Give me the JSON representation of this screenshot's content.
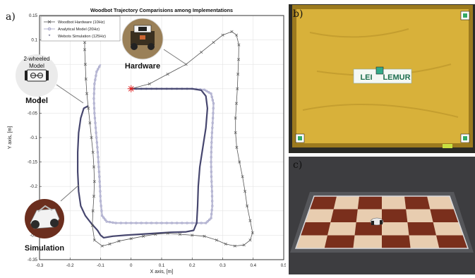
{
  "panel_labels": {
    "a": "a)",
    "b": "b)",
    "c": "c)"
  },
  "callouts": {
    "model_line1": "2-wheeled",
    "model_line2": "Model",
    "model_caption": "Model",
    "hardware_caption": "Hardware",
    "simulation_caption": "Simulation"
  },
  "photo_b": {
    "sign_left": "LEI",
    "sign_right": "LEMUR",
    "colors": {
      "board": "#d8b13a",
      "board_dark": "#9c7a1e",
      "frame": "#2b2b26"
    }
  },
  "photo_c": {
    "colors": {
      "wall": "#3d3d40",
      "wood": "#7a2f1c",
      "tile": "#e8cdb0"
    }
  },
  "chart_data": {
    "type": "line",
    "title": "Woodbot Trajectory Comparisions among Implementations",
    "xlabel": "X axis, [m]",
    "ylabel": "Y axis, [m]",
    "xlim": [
      -0.3,
      0.5
    ],
    "ylim": [
      -0.35,
      0.15
    ],
    "xticks": [
      -0.3,
      -0.2,
      -0.1,
      0,
      0.1,
      0.2,
      0.3,
      0.4,
      0.5
    ],
    "yticks": [
      0.15,
      0.1,
      0.05,
      0,
      -0.05,
      -0.1,
      -0.15,
      -0.2,
      -0.25,
      -0.3,
      -0.35
    ],
    "grid": true,
    "legend_position": "top-left",
    "start_point": {
      "x": 0,
      "y": 0
    },
    "series": [
      {
        "name": "Woodbot Hardware (10Hz)",
        "color": "#555555",
        "marker": "x",
        "points": [
          [
            0,
            0
          ],
          [
            0.06,
            0.01
          ],
          [
            0.12,
            0.03
          ],
          [
            0.18,
            0.05
          ],
          [
            0.23,
            0.075
          ],
          [
            0.27,
            0.095
          ],
          [
            0.3,
            0.11
          ],
          [
            0.33,
            0.117
          ],
          [
            0.345,
            0.11
          ],
          [
            0.353,
            0.09
          ],
          [
            0.352,
            0.06
          ],
          [
            0.35,
            0.03
          ],
          [
            0.348,
            0.0
          ],
          [
            0.345,
            -0.03
          ],
          [
            0.342,
            -0.06
          ],
          [
            0.342,
            -0.09
          ],
          [
            0.346,
            -0.12
          ],
          [
            0.355,
            -0.15
          ],
          [
            0.365,
            -0.18
          ],
          [
            0.373,
            -0.21
          ],
          [
            0.38,
            -0.24
          ],
          [
            0.39,
            -0.27
          ],
          [
            0.398,
            -0.295
          ],
          [
            0.39,
            -0.31
          ],
          [
            0.37,
            -0.32
          ],
          [
            0.34,
            -0.322
          ],
          [
            0.31,
            -0.318
          ],
          [
            0.28,
            -0.31
          ],
          [
            0.24,
            -0.302
          ],
          [
            0.2,
            -0.3
          ],
          [
            0.16,
            -0.298
          ],
          [
            0.12,
            -0.296
          ],
          [
            0.08,
            -0.298
          ],
          [
            0.04,
            -0.302
          ],
          [
            0.0,
            -0.307
          ],
          [
            -0.04,
            -0.312
          ],
          [
            -0.07,
            -0.318
          ],
          [
            -0.095,
            -0.322
          ],
          [
            -0.12,
            -0.31
          ],
          [
            -0.127,
            -0.28
          ],
          [
            -0.125,
            -0.25
          ],
          [
            -0.122,
            -0.22
          ],
          [
            -0.12,
            -0.19
          ],
          [
            -0.122,
            -0.16
          ],
          [
            -0.125,
            -0.13
          ],
          [
            -0.13,
            -0.1
          ],
          [
            -0.135,
            -0.07
          ],
          [
            -0.14,
            -0.04
          ],
          [
            -0.145,
            -0.01
          ],
          [
            -0.148,
            0.02
          ],
          [
            -0.15,
            0.05
          ],
          [
            -0.152,
            0.08
          ],
          [
            -0.152,
            0.095
          ]
        ]
      },
      {
        "name": "Analytical Model (20Hz)",
        "color": "#bdbdd6",
        "marker": "o",
        "points": [
          [
            0,
            0
          ],
          [
            0.05,
            0.0
          ],
          [
            0.1,
            0.0
          ],
          [
            0.15,
            0.0
          ],
          [
            0.2,
            0.0
          ],
          [
            0.24,
            -0.002
          ],
          [
            0.262,
            -0.01
          ],
          [
            0.27,
            -0.03
          ],
          [
            0.268,
            -0.06
          ],
          [
            0.265,
            -0.09
          ],
          [
            0.263,
            -0.12
          ],
          [
            0.262,
            -0.15
          ],
          [
            0.263,
            -0.18
          ],
          [
            0.265,
            -0.21
          ],
          [
            0.266,
            -0.24
          ],
          [
            0.262,
            -0.265
          ],
          [
            0.245,
            -0.275
          ],
          [
            0.2,
            -0.275
          ],
          [
            0.15,
            -0.275
          ],
          [
            0.1,
            -0.275
          ],
          [
            0.05,
            -0.275
          ],
          [
            0.0,
            -0.275
          ],
          [
            -0.05,
            -0.275
          ],
          [
            -0.08,
            -0.272
          ],
          [
            -0.095,
            -0.26
          ],
          [
            -0.1,
            -0.23
          ],
          [
            -0.102,
            -0.2
          ],
          [
            -0.105,
            -0.17
          ],
          [
            -0.108,
            -0.14
          ],
          [
            -0.112,
            -0.11
          ],
          [
            -0.116,
            -0.08
          ],
          [
            -0.12,
            -0.05
          ],
          [
            -0.122,
            -0.02
          ],
          [
            -0.12,
            0.01
          ],
          [
            -0.113,
            0.035
          ],
          [
            -0.1,
            0.05
          ]
        ]
      },
      {
        "name": "Webots Simulation (125Hz)",
        "color": "#46466e",
        "marker": "*",
        "points": [
          [
            0,
            0
          ],
          [
            0.05,
            0.0
          ],
          [
            0.1,
            0.0
          ],
          [
            0.15,
            0.0
          ],
          [
            0.2,
            0.0
          ],
          [
            0.23,
            -0.003
          ],
          [
            0.245,
            -0.015
          ],
          [
            0.25,
            -0.04
          ],
          [
            0.245,
            -0.08
          ],
          [
            0.235,
            -0.12
          ],
          [
            0.225,
            -0.16
          ],
          [
            0.22,
            -0.2
          ],
          [
            0.218,
            -0.24
          ],
          [
            0.215,
            -0.275
          ],
          [
            0.205,
            -0.29
          ],
          [
            0.18,
            -0.293
          ],
          [
            0.13,
            -0.294
          ],
          [
            0.08,
            -0.296
          ],
          [
            0.03,
            -0.298
          ],
          [
            -0.02,
            -0.3
          ],
          [
            -0.06,
            -0.302
          ],
          [
            -0.09,
            -0.305
          ],
          [
            -0.1,
            -0.3
          ],
          [
            -0.11,
            -0.29
          ],
          [
            -0.13,
            -0.276
          ],
          [
            -0.15,
            -0.26
          ],
          [
            -0.165,
            -0.24
          ],
          [
            -0.172,
            -0.21
          ],
          [
            -0.175,
            -0.17
          ],
          [
            -0.175,
            -0.13
          ],
          [
            -0.172,
            -0.09
          ],
          [
            -0.165,
            -0.06
          ],
          [
            -0.155,
            -0.04
          ],
          [
            -0.14,
            -0.035
          ]
        ]
      }
    ]
  }
}
